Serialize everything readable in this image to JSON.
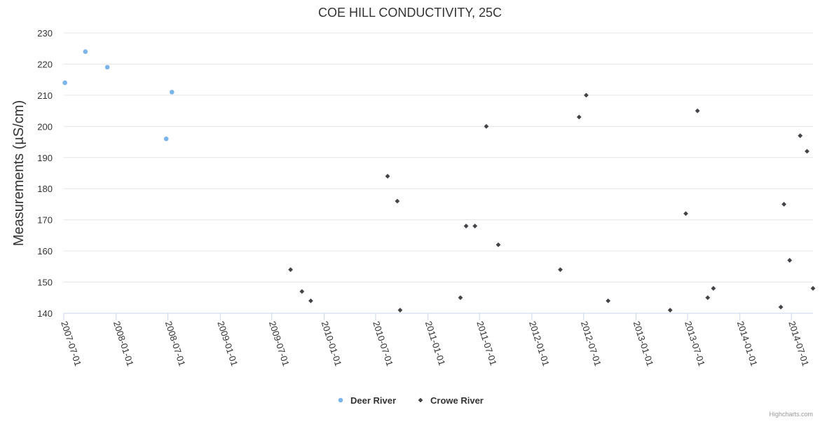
{
  "chart_data": {
    "type": "scatter",
    "title": "COE HILL CONDUCTIVITY, 25C",
    "xlabel": "",
    "ylabel": "Measurements (µS/cm)",
    "x_type": "date",
    "xlim": [
      "2007-07-01",
      "2014-09-15"
    ],
    "ylim": [
      140,
      230
    ],
    "y_ticks": [
      140,
      150,
      160,
      170,
      180,
      190,
      200,
      210,
      220,
      230
    ],
    "x_ticks": [
      "2007-07-01",
      "2008-01-01",
      "2008-07-01",
      "2009-01-01",
      "2009-07-01",
      "2010-01-01",
      "2010-07-01",
      "2011-01-01",
      "2011-07-01",
      "2012-01-01",
      "2012-07-01",
      "2013-01-01",
      "2013-07-01",
      "2014-01-01",
      "2014-07-01"
    ],
    "grid": "horizontal",
    "legend": "bottom-center",
    "series": [
      {
        "name": "Deer River",
        "color": "#7cb5ec",
        "marker": "circle",
        "points": [
          {
            "x": "2007-07-05",
            "y": 214
          },
          {
            "x": "2007-09-15",
            "y": 224
          },
          {
            "x": "2007-12-01",
            "y": 219
          },
          {
            "x": "2008-06-25",
            "y": 196
          },
          {
            "x": "2008-07-15",
            "y": 211
          }
        ]
      },
      {
        "name": "Crowe River",
        "color": "#434348",
        "marker": "diamond",
        "points": [
          {
            "x": "2009-09-05",
            "y": 154
          },
          {
            "x": "2009-10-15",
            "y": 147
          },
          {
            "x": "2009-11-15",
            "y": 144
          },
          {
            "x": "2010-08-12",
            "y": 184
          },
          {
            "x": "2010-09-15",
            "y": 176
          },
          {
            "x": "2010-09-25",
            "y": 141
          },
          {
            "x": "2011-04-25",
            "y": 145
          },
          {
            "x": "2011-05-15",
            "y": 168
          },
          {
            "x": "2011-06-15",
            "y": 168
          },
          {
            "x": "2011-07-25",
            "y": 200
          },
          {
            "x": "2011-09-05",
            "y": 162
          },
          {
            "x": "2012-04-10",
            "y": 154
          },
          {
            "x": "2012-06-15",
            "y": 203
          },
          {
            "x": "2012-07-10",
            "y": 210
          },
          {
            "x": "2012-09-25",
            "y": 144
          },
          {
            "x": "2013-05-01",
            "y": 141
          },
          {
            "x": "2013-06-25",
            "y": 172
          },
          {
            "x": "2013-08-05",
            "y": 205
          },
          {
            "x": "2013-09-10",
            "y": 145
          },
          {
            "x": "2013-09-30",
            "y": 148
          },
          {
            "x": "2014-05-25",
            "y": 142
          },
          {
            "x": "2014-06-05",
            "y": 175
          },
          {
            "x": "2014-06-25",
            "y": 157
          },
          {
            "x": "2014-08-01",
            "y": 197
          },
          {
            "x": "2014-08-25",
            "y": 192
          },
          {
            "x": "2014-09-15",
            "y": 148
          }
        ]
      }
    ]
  },
  "credits": "Highcharts.com"
}
